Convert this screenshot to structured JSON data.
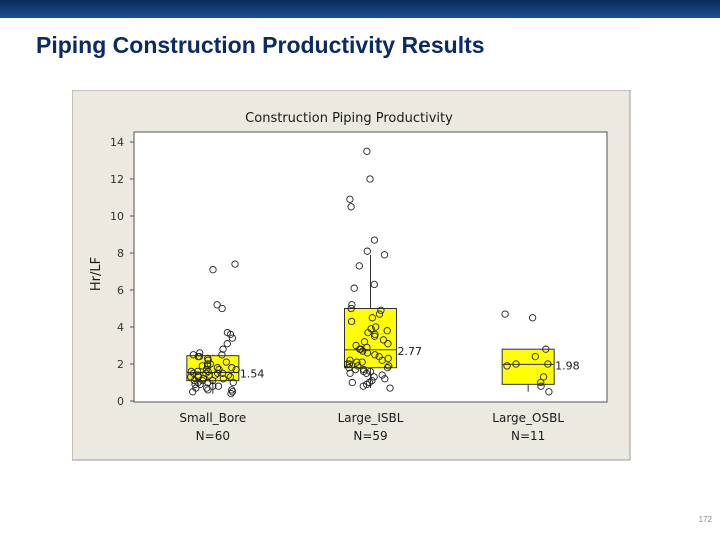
{
  "slide": {
    "title": "Piping Construction Productivity Results",
    "page_number": "172"
  },
  "colors": {
    "header_bar": "#0a2a5a",
    "title": "#0b2a66",
    "panel_background": "#ece9e1",
    "box_fill": "#ffff00"
  },
  "chart_data": {
    "type": "boxplot",
    "title": "Construction Piping Productivity",
    "ylabel": "Hr/LF",
    "ylim": [
      0,
      14
    ],
    "yticks": [
      0,
      2,
      4,
      6,
      8,
      10,
      12,
      14
    ],
    "grid": false,
    "categories": [
      {
        "name": "Small_Bore",
        "count_label": "N=60",
        "q1": 1.1,
        "median": 1.54,
        "q3": 2.45,
        "whisker_low": 0.4,
        "whisker_high": 2.5,
        "median_label": "1.54",
        "points": [
          0.4,
          0.5,
          0.5,
          0.6,
          0.6,
          0.7,
          0.7,
          0.8,
          0.8,
          0.9,
          0.9,
          1.0,
          1.0,
          1.0,
          1.1,
          1.1,
          1.1,
          1.2,
          1.2,
          1.2,
          1.3,
          1.3,
          1.3,
          1.4,
          1.4,
          1.4,
          1.4,
          1.5,
          1.5,
          1.5,
          1.5,
          1.6,
          1.6,
          1.6,
          1.7,
          1.7,
          1.7,
          1.8,
          1.8,
          1.9,
          1.9,
          2.0,
          2.0,
          2.1,
          2.2,
          2.3,
          2.4,
          2.4,
          2.5,
          2.5,
          2.6,
          2.8,
          3.1,
          3.4,
          3.6,
          3.7,
          5.0,
          5.2,
          7.1,
          7.4
        ]
      },
      {
        "name": "Large_ISBL",
        "count_label": "N=59",
        "q1": 1.8,
        "median": 2.77,
        "q3": 5.0,
        "whisker_low": 0.7,
        "whisker_high": 7.9,
        "median_label": "2.77",
        "points": [
          0.7,
          0.8,
          0.9,
          1.0,
          1.0,
          1.1,
          1.2,
          1.3,
          1.4,
          1.5,
          1.5,
          1.6,
          1.6,
          1.7,
          1.7,
          1.8,
          1.8,
          1.9,
          1.9,
          2.0,
          2.0,
          2.1,
          2.1,
          2.2,
          2.2,
          2.3,
          2.4,
          2.5,
          2.6,
          2.7,
          2.8,
          2.8,
          2.9,
          3.0,
          3.1,
          3.2,
          3.3,
          3.5,
          3.6,
          3.7,
          3.8,
          3.9,
          4.0,
          4.3,
          4.5,
          4.7,
          4.9,
          5.0,
          5.2,
          6.1,
          6.3,
          7.3,
          7.9,
          8.1,
          8.7,
          10.5,
          10.9,
          12.0,
          13.5
        ]
      },
      {
        "name": "Large_OSBL",
        "count_label": "N=11",
        "q1": 0.9,
        "median": 1.98,
        "q3": 2.8,
        "whisker_low": 0.5,
        "whisker_high": 2.8,
        "median_label": "1.98",
        "points": [
          0.5,
          0.8,
          1.0,
          1.3,
          1.9,
          2.0,
          2.0,
          2.4,
          2.8,
          4.5,
          4.7
        ]
      }
    ]
  }
}
